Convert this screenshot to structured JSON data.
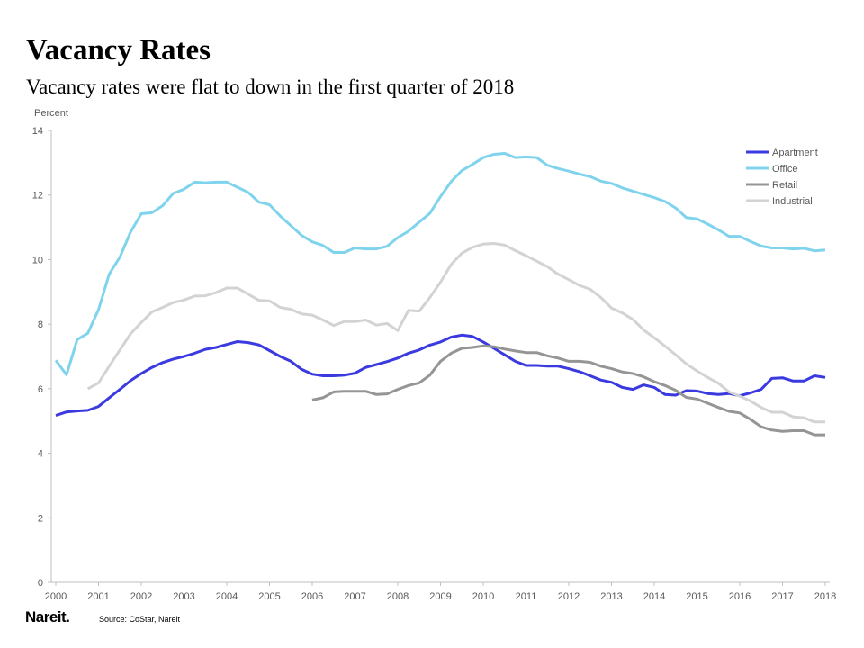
{
  "header": {
    "title": "Vacancy Rates",
    "subtitle": "Vacancy rates were flat to down in the first quarter of 2018"
  },
  "footer": {
    "logo": "Nareit.",
    "source": "Source: CoStar, Nareit"
  },
  "chart_data": {
    "type": "line",
    "ylabel": "Percent",
    "ylim": [
      0,
      14
    ],
    "yticks": [
      "0",
      "2",
      "4",
      "6",
      "8",
      "10",
      "12",
      "14"
    ],
    "xlim": [
      2000,
      2018
    ],
    "xticks": [
      "2000",
      "2001",
      "2002",
      "2003",
      "2004",
      "2005",
      "2006",
      "2007",
      "2008",
      "2009",
      "2010",
      "2011",
      "2012",
      "2013",
      "2014",
      "2015",
      "2016",
      "2017",
      "2018"
    ],
    "frequency": "quarterly",
    "legend_position": "top-right",
    "grid": false,
    "series": [
      {
        "name": "Apartment",
        "color": "#3a3ae0",
        "start": 2000.0,
        "values": [
          5.17,
          5.28,
          5.31,
          5.33,
          5.45,
          5.72,
          5.98,
          6.25,
          6.47,
          6.66,
          6.81,
          6.92,
          7.0,
          7.1,
          7.22,
          7.28,
          7.37,
          7.46,
          7.43,
          7.36,
          7.18,
          7.0,
          6.85,
          6.6,
          6.45,
          6.4,
          6.4,
          6.42,
          6.48,
          6.66,
          6.75,
          6.84,
          6.95,
          7.1,
          7.2,
          7.35,
          7.45,
          7.6,
          7.66,
          7.62,
          7.45,
          7.25,
          7.05,
          6.85,
          6.72,
          6.72,
          6.7,
          6.7,
          6.62,
          6.53,
          6.4,
          6.27,
          6.2,
          6.04,
          5.98,
          6.12,
          6.04,
          5.82,
          5.8,
          5.94,
          5.93,
          5.85,
          5.82,
          5.85,
          5.78,
          5.87,
          5.98,
          6.32,
          6.34,
          6.24,
          6.24,
          6.4,
          6.35
        ]
      },
      {
        "name": "Office",
        "color": "#7fd3ec",
        "start": 2000.0,
        "values": [
          6.88,
          6.43,
          7.52,
          7.72,
          8.45,
          9.55,
          10.08,
          10.85,
          11.42,
          11.45,
          11.67,
          12.05,
          12.18,
          12.4,
          12.38,
          12.4,
          12.4,
          12.24,
          12.08,
          11.78,
          11.7,
          11.35,
          11.05,
          10.75,
          10.55,
          10.44,
          10.22,
          10.22,
          10.36,
          10.33,
          10.33,
          10.41,
          10.68,
          10.88,
          11.16,
          11.43,
          11.95,
          12.42,
          12.76,
          12.95,
          13.16,
          13.26,
          13.29,
          13.16,
          13.18,
          13.16,
          12.92,
          12.82,
          12.74,
          12.65,
          12.57,
          12.43,
          12.36,
          12.22,
          12.12,
          12.02,
          11.92,
          11.8,
          11.6,
          11.3,
          11.26,
          11.1,
          10.92,
          10.72,
          10.72,
          10.56,
          10.42,
          10.36,
          10.36,
          10.33,
          10.35,
          10.27,
          10.3
        ]
      },
      {
        "name": "Retail",
        "color": "#959595",
        "start": 2006.0,
        "values": [
          5.65,
          5.72,
          5.9,
          5.92,
          5.92,
          5.92,
          5.82,
          5.84,
          5.98,
          6.1,
          6.18,
          6.42,
          6.85,
          7.1,
          7.25,
          7.28,
          7.33,
          7.3,
          7.23,
          7.17,
          7.12,
          7.12,
          7.02,
          6.95,
          6.85,
          6.85,
          6.82,
          6.7,
          6.62,
          6.52,
          6.47,
          6.37,
          6.22,
          6.1,
          5.95,
          5.73,
          5.68,
          5.55,
          5.42,
          5.3,
          5.25,
          5.05,
          4.82,
          4.72,
          4.68,
          4.7,
          4.7,
          4.57,
          4.57
        ]
      },
      {
        "name": "Industrial",
        "color": "#d3d3d3",
        "start": 2000.75,
        "values": [
          6.0,
          6.18,
          6.7,
          7.2,
          7.7,
          8.05,
          8.38,
          8.52,
          8.67,
          8.75,
          8.87,
          8.88,
          8.98,
          9.12,
          9.12,
          8.93,
          8.74,
          8.72,
          8.52,
          8.46,
          8.32,
          8.28,
          8.13,
          7.96,
          8.08,
          8.08,
          8.13,
          7.97,
          8.02,
          7.8,
          8.43,
          8.4,
          8.82,
          9.3,
          9.85,
          10.2,
          10.38,
          10.48,
          10.5,
          10.45,
          10.28,
          10.12,
          9.95,
          9.78,
          9.55,
          9.38,
          9.2,
          9.08,
          8.83,
          8.5,
          8.35,
          8.15,
          7.82,
          7.58,
          7.32,
          7.05,
          6.77,
          6.55,
          6.35,
          6.17,
          5.9,
          5.77,
          5.62,
          5.42,
          5.27,
          5.27,
          5.13,
          5.1,
          4.97,
          4.97
        ]
      }
    ]
  }
}
